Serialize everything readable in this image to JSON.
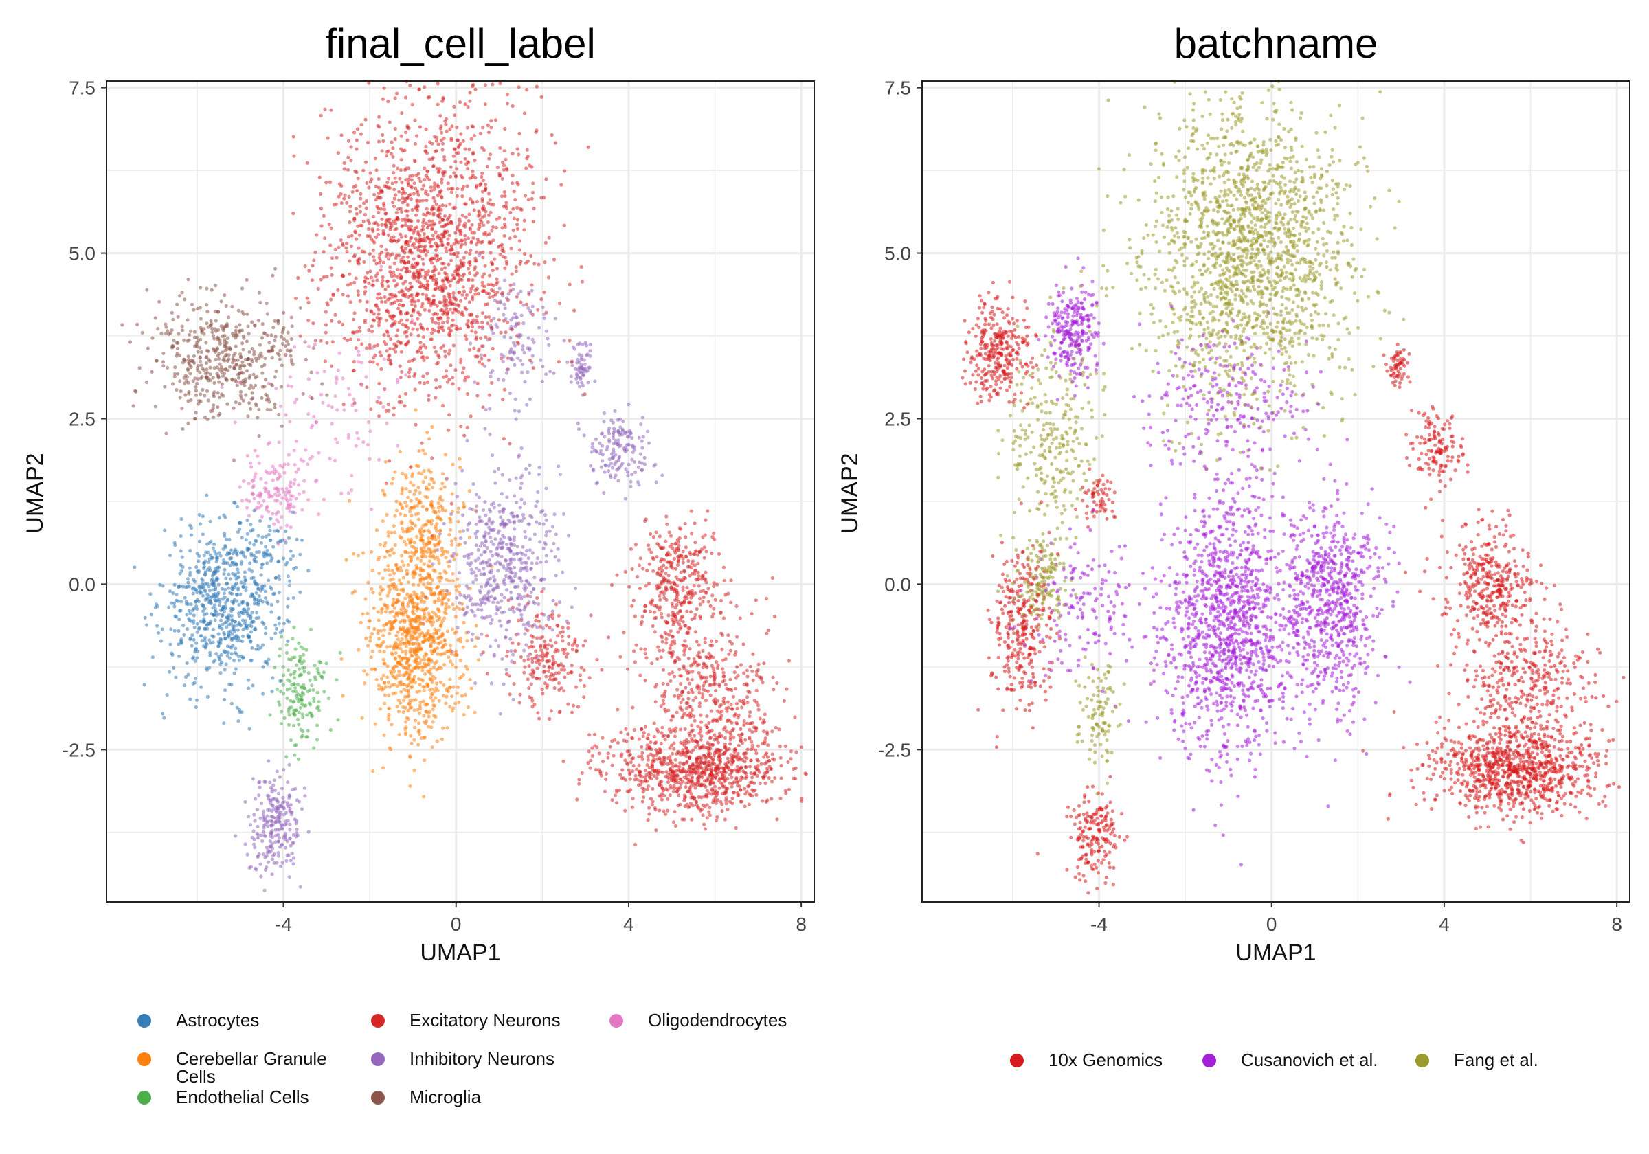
{
  "chart_data": [
    {
      "type": "scatter",
      "title": "final_cell_label",
      "xlabel": "UMAP1",
      "ylabel": "UMAP2",
      "xlim": [
        -8.1,
        8.3
      ],
      "ylim": [
        -4.8,
        7.6
      ],
      "xticks": [
        -4,
        0,
        4,
        8
      ],
      "xtick_labels": [
        "-4",
        "0",
        "4",
        "8"
      ],
      "yticks": [
        -2.5,
        0,
        2.5,
        5,
        7.5
      ],
      "ytick_labels": [
        "-2.5",
        "0.0",
        "2.5",
        "5.0",
        "7.5"
      ],
      "grid": true,
      "legend_position": "bottom",
      "series": [
        {
          "name": "Astrocytes",
          "color": "#377eb8",
          "clusters": [
            {
              "center": [
                -5.4,
                -0.3
              ],
              "spread": [
                0.7,
                0.6
              ],
              "n": 700
            },
            {
              "center": [
                -4.2,
                0.5
              ],
              "spread": [
                0.4,
                0.3
              ],
              "n": 60
            }
          ]
        },
        {
          "name": "Cerebellar Granule Cells",
          "color": "#ff7f0e",
          "clusters": [
            {
              "center": [
                -0.9,
                -0.8
              ],
              "spread": [
                0.55,
                0.75
              ],
              "n": 900
            },
            {
              "center": [
                -0.8,
                1.0
              ],
              "spread": [
                0.45,
                0.5
              ],
              "n": 250
            }
          ]
        },
        {
          "name": "Endothelial Cells",
          "color": "#4daf4a",
          "clusters": [
            {
              "center": [
                -3.6,
                -1.6
              ],
              "spread": [
                0.3,
                0.4
              ],
              "n": 160
            }
          ]
        },
        {
          "name": "Excitatory Neurons",
          "color": "#d62728",
          "clusters": [
            {
              "center": [
                -0.6,
                5.0
              ],
              "spread": [
                1.2,
                1.1
              ],
              "n": 1700
            },
            {
              "center": [
                5.6,
                -2.8
              ],
              "spread": [
                1.0,
                0.35
              ],
              "n": 900
            },
            {
              "center": [
                5.1,
                0.0
              ],
              "spread": [
                0.5,
                0.45
              ],
              "n": 350
            },
            {
              "center": [
                5.9,
                -1.5
              ],
              "spread": [
                0.8,
                0.5
              ],
              "n": 350
            },
            {
              "center": [
                2.1,
                -1.1
              ],
              "spread": [
                0.5,
                0.4
              ],
              "n": 200
            }
          ]
        },
        {
          "name": "Inhibitory Neurons",
          "color": "#9467bd",
          "clusters": [
            {
              "center": [
                1.1,
                0.3
              ],
              "spread": [
                0.6,
                0.7
              ],
              "n": 500
            },
            {
              "center": [
                3.8,
                2.0
              ],
              "spread": [
                0.35,
                0.3
              ],
              "n": 150
            },
            {
              "center": [
                2.9,
                3.3
              ],
              "spread": [
                0.12,
                0.15
              ],
              "n": 60
            },
            {
              "center": [
                -4.2,
                -3.6
              ],
              "spread": [
                0.3,
                0.35
              ],
              "n": 230
            },
            {
              "center": [
                1.3,
                3.6
              ],
              "spread": [
                0.4,
                0.5
              ],
              "n": 120
            }
          ]
        },
        {
          "name": "Microglia",
          "color": "#8c564b",
          "clusters": [
            {
              "center": [
                -5.4,
                3.4
              ],
              "spread": [
                0.9,
                0.45
              ],
              "n": 500
            }
          ]
        },
        {
          "name": "Oligodendrocytes",
          "color": "#e377c2",
          "clusters": [
            {
              "center": [
                -4.2,
                1.4
              ],
              "spread": [
                0.4,
                0.3
              ],
              "n": 130
            },
            {
              "center": [
                -3.0,
                2.6
              ],
              "spread": [
                0.9,
                0.6
              ],
              "n": 100
            }
          ]
        }
      ]
    },
    {
      "type": "scatter",
      "title": "batchname",
      "xlabel": "UMAP1",
      "ylabel": "UMAP2",
      "xlim": [
        -8.1,
        8.3
      ],
      "ylim": [
        -4.8,
        7.6
      ],
      "xticks": [
        -4,
        0,
        4,
        8
      ],
      "xtick_labels": [
        "-4",
        "0",
        "4",
        "8"
      ],
      "yticks": [
        -2.5,
        0,
        2.5,
        5,
        7.5
      ],
      "ytick_labels": [
        "-2.5",
        "0.0",
        "2.5",
        "5.0",
        "7.5"
      ],
      "grid": true,
      "legend_position": "bottom",
      "series": [
        {
          "name": "10x Genomics",
          "color": "#d7191c",
          "clusters": [
            {
              "center": [
                -6.3,
                3.5
              ],
              "spread": [
                0.35,
                0.4
              ],
              "n": 300
            },
            {
              "center": [
                -5.8,
                -0.7
              ],
              "spread": [
                0.35,
                0.6
              ],
              "n": 300
            },
            {
              "center": [
                -4.1,
                -3.8
              ],
              "spread": [
                0.3,
                0.3
              ],
              "n": 180
            },
            {
              "center": [
                2.9,
                3.3
              ],
              "spread": [
                0.12,
                0.15
              ],
              "n": 60
            },
            {
              "center": [
                3.8,
                2.0
              ],
              "spread": [
                0.3,
                0.3
              ],
              "n": 130
            },
            {
              "center": [
                5.1,
                0.0
              ],
              "spread": [
                0.5,
                0.45
              ],
              "n": 350
            },
            {
              "center": [
                5.6,
                -2.8
              ],
              "spread": [
                1.0,
                0.35
              ],
              "n": 900
            },
            {
              "center": [
                5.9,
                -1.5
              ],
              "spread": [
                0.8,
                0.5
              ],
              "n": 350
            },
            {
              "center": [
                -4.0,
                1.3
              ],
              "spread": [
                0.2,
                0.2
              ],
              "n": 60
            }
          ]
        },
        {
          "name": "Cusanovich et al.",
          "color": "#a51ed8",
          "clusters": [
            {
              "center": [
                -4.6,
                3.8
              ],
              "spread": [
                0.3,
                0.35
              ],
              "n": 250
            },
            {
              "center": [
                -1.0,
                -0.6
              ],
              "spread": [
                0.75,
                1.0
              ],
              "n": 1200
            },
            {
              "center": [
                1.4,
                -0.3
              ],
              "spread": [
                0.6,
                0.8
              ],
              "n": 700
            },
            {
              "center": [
                -1.0,
                2.8
              ],
              "spread": [
                1.0,
                0.5
              ],
              "n": 220
            },
            {
              "center": [
                -4.3,
                -0.3
              ],
              "spread": [
                0.6,
                0.5
              ],
              "n": 150
            }
          ]
        },
        {
          "name": "Fang et al.",
          "color": "#9c9a2c",
          "clusters": [
            {
              "center": [
                -0.5,
                5.0
              ],
              "spread": [
                1.2,
                1.1
              ],
              "n": 1700
            },
            {
              "center": [
                -5.1,
                2.3
              ],
              "spread": [
                0.5,
                0.7
              ],
              "n": 250
            },
            {
              "center": [
                -5.3,
                0.1
              ],
              "spread": [
                0.3,
                0.3
              ],
              "n": 150
            },
            {
              "center": [
                -4.0,
                -2.0
              ],
              "spread": [
                0.25,
                0.4
              ],
              "n": 100
            }
          ]
        }
      ]
    }
  ],
  "legends": [
    {
      "items": [
        "Astrocytes",
        "Cerebellar Granule\nCells",
        "Endothelial Cells",
        "Excitatory Neurons",
        "Inhibitory Neurons",
        "Microglia",
        "Oligodendrocytes"
      ],
      "colors": [
        "#377eb8",
        "#ff7f0e",
        "#4daf4a",
        "#d62728",
        "#9467bd",
        "#8c564b",
        "#e377c2"
      ]
    },
    {
      "items": [
        "10x Genomics",
        "Cusanovich et al.",
        "Fang et al."
      ],
      "colors": [
        "#d7191c",
        "#a51ed8",
        "#9c9a2c"
      ]
    }
  ]
}
